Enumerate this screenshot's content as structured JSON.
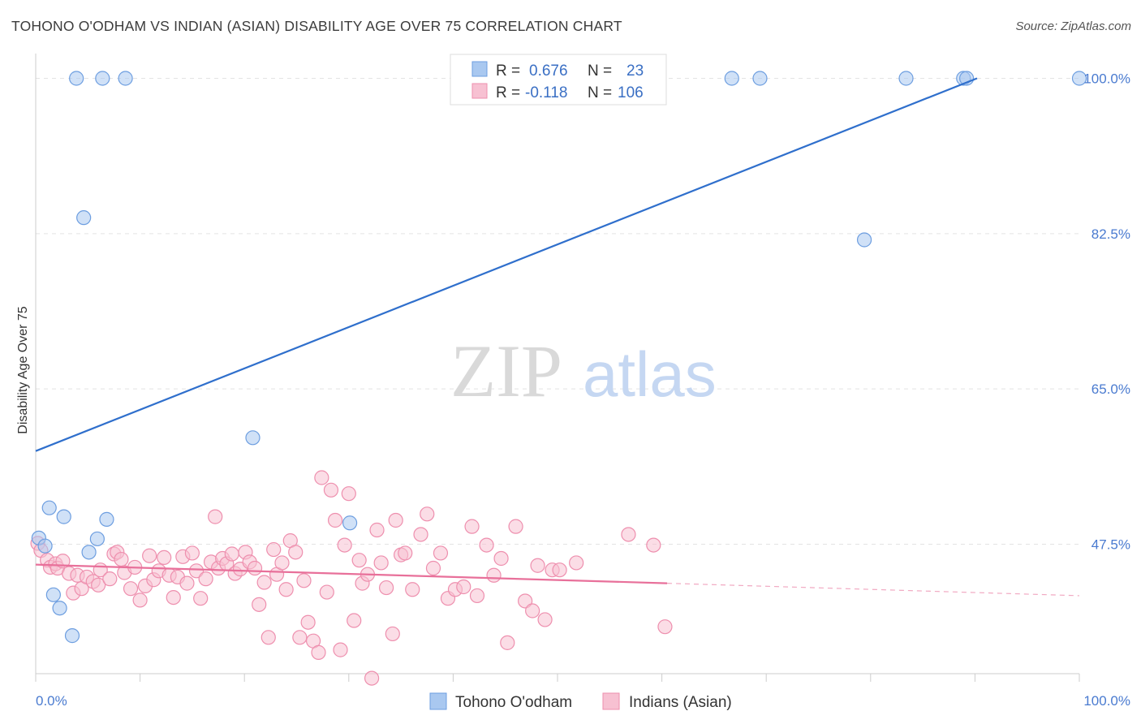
{
  "title": "TOHONO O'ODHAM VS INDIAN (ASIAN) DISABILITY AGE OVER 75 CORRELATION CHART",
  "source": "Source: ZipAtlas.com",
  "watermark": {
    "zip": "ZIP",
    "atlas": "atlas"
  },
  "chart_data": {
    "type": "scatter",
    "ylabel": "Disability Age Over 75",
    "xlim": [
      0,
      100
    ],
    "ylim": [
      30,
      102
    ],
    "yticks": [
      {
        "value": 100.0,
        "label": "100.0%"
      },
      {
        "value": 82.5,
        "label": "82.5%"
      },
      {
        "value": 65.0,
        "label": "65.0%"
      },
      {
        "value": 47.5,
        "label": "47.5%"
      }
    ],
    "xtick_labels": {
      "left": "0.0%",
      "right": "100.0%"
    },
    "grid": true,
    "legend_placement": "top-center",
    "series": [
      {
        "name": "Tohono O'odham",
        "color": "#a9c8f0",
        "stroke": "#6d9ee0",
        "line_color": "#2f6fcc",
        "R_label": "R =",
        "R": "0.676",
        "N_label": "N =",
        "N": "23",
        "trend": {
          "x0": 0,
          "y0": 58.0,
          "x1": 90.2,
          "y1": 100.0,
          "dashed_to": null
        },
        "points": [
          [
            3.9,
            100
          ],
          [
            6.4,
            100
          ],
          [
            8.6,
            100
          ],
          [
            66.7,
            100
          ],
          [
            69.4,
            100
          ],
          [
            83.4,
            100
          ],
          [
            88.9,
            100
          ],
          [
            89.2,
            100
          ],
          [
            100,
            100
          ],
          [
            4.6,
            84.3
          ],
          [
            79.4,
            81.8
          ],
          [
            20.8,
            59.5
          ],
          [
            1.3,
            51.6
          ],
          [
            2.7,
            50.6
          ],
          [
            6.8,
            50.3
          ],
          [
            30.1,
            49.9
          ],
          [
            5.9,
            48.1
          ],
          [
            5.1,
            46.6
          ],
          [
            0.3,
            48.2
          ],
          [
            0.9,
            47.3
          ],
          [
            1.7,
            41.8
          ],
          [
            2.3,
            40.3
          ],
          [
            3.5,
            37.2
          ]
        ]
      },
      {
        "name": "Indians (Asian)",
        "color": "#f7c1d2",
        "stroke": "#ee8fae",
        "line_color": "#e8709a",
        "R_label": "R =",
        "R": "-0.118",
        "N_label": "N =",
        "N": "106",
        "trend": {
          "x0": 0,
          "y0": 45.2,
          "x1": 60.5,
          "y1": 43.1,
          "dashed_to": [
            100,
            41.7
          ]
        },
        "points": [
          [
            0.2,
            47.6
          ],
          [
            0.5,
            46.8
          ],
          [
            1.1,
            45.7
          ],
          [
            1.4,
            44.9
          ],
          [
            1.9,
            45.3
          ],
          [
            2.1,
            44.8
          ],
          [
            2.6,
            45.6
          ],
          [
            3.2,
            44.2
          ],
          [
            3.6,
            42.0
          ],
          [
            4.0,
            44.0
          ],
          [
            4.4,
            42.5
          ],
          [
            4.9,
            43.8
          ],
          [
            5.5,
            43.3
          ],
          [
            6.0,
            42.9
          ],
          [
            6.2,
            44.6
          ],
          [
            7.1,
            43.6
          ],
          [
            7.5,
            46.4
          ],
          [
            7.8,
            46.6
          ],
          [
            8.2,
            45.8
          ],
          [
            8.5,
            44.3
          ],
          [
            9.1,
            42.5
          ],
          [
            9.5,
            44.9
          ],
          [
            10.0,
            41.2
          ],
          [
            10.5,
            42.8
          ],
          [
            10.9,
            46.2
          ],
          [
            11.3,
            43.5
          ],
          [
            11.8,
            44.5
          ],
          [
            12.3,
            46.0
          ],
          [
            12.8,
            44.0
          ],
          [
            13.2,
            41.5
          ],
          [
            13.6,
            43.8
          ],
          [
            14.1,
            46.1
          ],
          [
            14.5,
            43.1
          ],
          [
            15.0,
            46.5
          ],
          [
            15.4,
            44.5
          ],
          [
            15.8,
            41.4
          ],
          [
            16.3,
            43.6
          ],
          [
            16.8,
            45.5
          ],
          [
            17.2,
            50.6
          ],
          [
            17.5,
            44.8
          ],
          [
            17.9,
            45.9
          ],
          [
            18.3,
            45.3
          ],
          [
            18.8,
            46.4
          ],
          [
            19.1,
            44.2
          ],
          [
            19.6,
            44.7
          ],
          [
            20.1,
            46.6
          ],
          [
            20.5,
            45.5
          ],
          [
            21.0,
            44.8
          ],
          [
            21.4,
            40.7
          ],
          [
            21.9,
            43.2
          ],
          [
            22.3,
            37.0
          ],
          [
            22.8,
            46.9
          ],
          [
            23.1,
            44.1
          ],
          [
            23.6,
            45.4
          ],
          [
            24.0,
            42.4
          ],
          [
            24.4,
            47.9
          ],
          [
            24.9,
            46.6
          ],
          [
            25.3,
            37.0
          ],
          [
            25.7,
            43.4
          ],
          [
            26.1,
            38.7
          ],
          [
            26.6,
            36.6
          ],
          [
            27.1,
            35.3
          ],
          [
            27.4,
            55.0
          ],
          [
            27.9,
            42.1
          ],
          [
            28.3,
            53.6
          ],
          [
            28.7,
            50.2
          ],
          [
            29.2,
            35.6
          ],
          [
            29.6,
            47.4
          ],
          [
            30.0,
            53.2
          ],
          [
            30.5,
            38.9
          ],
          [
            31.0,
            45.7
          ],
          [
            31.3,
            43.1
          ],
          [
            31.8,
            44.1
          ],
          [
            32.2,
            32.4
          ],
          [
            32.7,
            49.1
          ],
          [
            33.1,
            45.4
          ],
          [
            33.6,
            42.6
          ],
          [
            34.2,
            37.4
          ],
          [
            34.5,
            50.2
          ],
          [
            35.0,
            46.3
          ],
          [
            35.4,
            46.5
          ],
          [
            36.1,
            42.4
          ],
          [
            36.9,
            48.6
          ],
          [
            37.5,
            50.9
          ],
          [
            38.1,
            44.8
          ],
          [
            38.8,
            46.5
          ],
          [
            39.5,
            41.4
          ],
          [
            40.2,
            42.4
          ],
          [
            41.0,
            42.7
          ],
          [
            41.8,
            49.5
          ],
          [
            42.3,
            41.7
          ],
          [
            43.2,
            47.4
          ],
          [
            43.9,
            44.0
          ],
          [
            44.6,
            45.9
          ],
          [
            45.2,
            36.4
          ],
          [
            46.0,
            49.5
          ],
          [
            46.9,
            41.1
          ],
          [
            47.6,
            40.0
          ],
          [
            48.1,
            45.1
          ],
          [
            48.8,
            39.0
          ],
          [
            49.5,
            44.6
          ],
          [
            50.2,
            44.6
          ],
          [
            51.8,
            45.4
          ],
          [
            56.8,
            48.6
          ],
          [
            60.3,
            38.2
          ],
          [
            59.2,
            47.4
          ]
        ]
      }
    ]
  }
}
